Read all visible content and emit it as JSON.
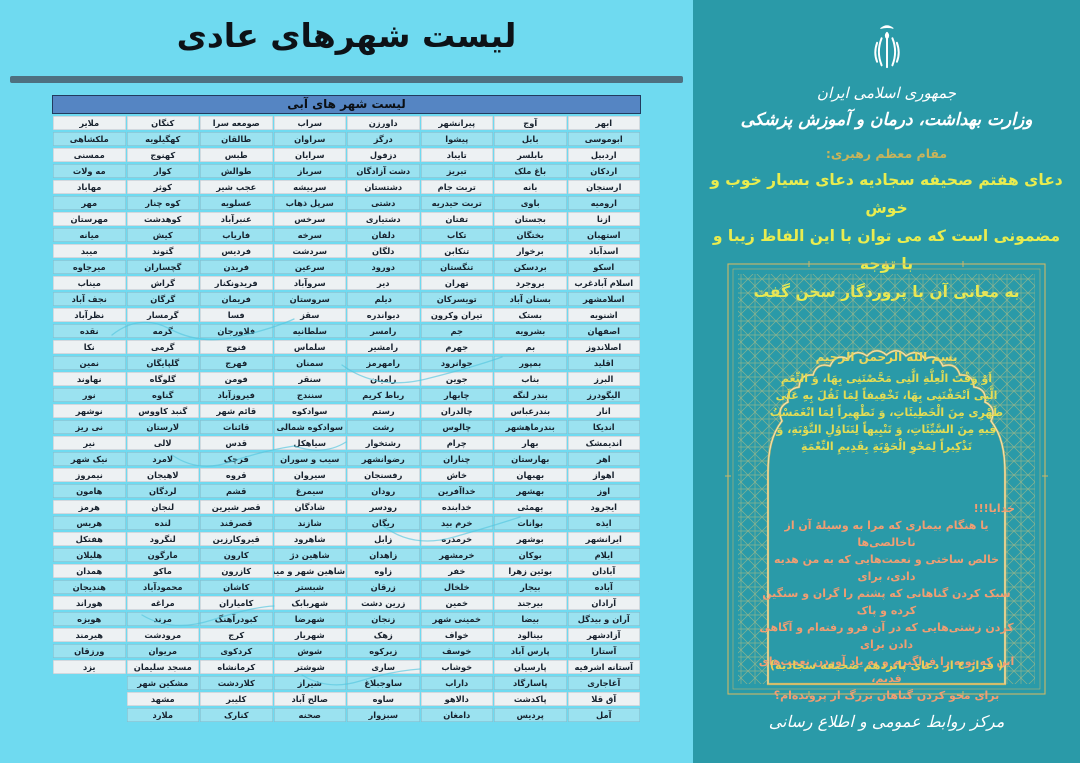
{
  "colors": {
    "left_background": "#6fdaf0",
    "row_light": "#edf1f3",
    "row_cyan": "#9be2f0",
    "table_header_band": "#5585c3",
    "right_background": "#2a9aa8",
    "gold": "#cdb768",
    "yellow": "#e9ec4f",
    "orange": "#f09e73",
    "white": "#ffffff"
  },
  "left_panel": {
    "title": "لیست شهرهای عادی",
    "table_title": "لیست شهر های آبی",
    "columns": [
      [
        "ابهر",
        "ابوموسی",
        "اردبیل",
        "اردکان",
        "ارسنجان",
        "ارومیه",
        "ازنا",
        "استهبان",
        "اسدآباد",
        "اسکو",
        "اسلام آبادغرب",
        "اسلامشهر",
        "اشنویه",
        "اصفهان",
        "اصلاندوز",
        "اقلید",
        "البرز",
        "الیگودرز",
        "انار",
        "اندیکا",
        "اندیمشک",
        "اهر",
        "اهواز",
        "اوز",
        "ایجرود",
        "ایذه",
        "ایرانشهر",
        "ایلام",
        "آبادان",
        "آباده",
        "آرادان",
        "آران و بیدگل",
        "آزادشهر",
        "آستارا",
        "آستانه اشرفیه",
        "آغاجاری",
        "آق قلا",
        "آمل"
      ],
      [
        "آوج",
        "بابل",
        "بابلسر",
        "باغ ملک",
        "بانه",
        "باوی",
        "بجستان",
        "بختگان",
        "برخوار",
        "بردسکن",
        "بروجرد",
        "بستان آباد",
        "بستک",
        "بشرویه",
        "بم",
        "بمپور",
        "بناب",
        "بندر لنگه",
        "بندرعباس",
        "بندرماهشهر",
        "بهار",
        "بهارستان",
        "بهبهان",
        "بهشهر",
        "بهمئی",
        "بوانات",
        "بوشهر",
        "بوکان",
        "بوئین زهرا",
        "بیجار",
        "بیرجند",
        "بیضا",
        "بینالود",
        "پارس آباد",
        "پارسیان",
        "پاسارگاد",
        "پاکدشت",
        "پردیس"
      ],
      [
        "پیرانشهر",
        "پیشوا",
        "تایباد",
        "تبریز",
        "تربت جام",
        "تربت حیدریه",
        "تفتان",
        "تکاب",
        "تنکابن",
        "تنگستان",
        "تهران",
        "تویسرکان",
        "تیران وکرون",
        "جم",
        "جهرم",
        "جوانرود",
        "جوین",
        "چابهار",
        "چالدران",
        "چالوس",
        "چرام",
        "چناران",
        "خاش",
        "خداآفرین",
        "خدابنده",
        "خرم بید",
        "خرمدره",
        "خرمشهر",
        "خفر",
        "خلخال",
        "خمین",
        "خمینی شهر",
        "خواف",
        "خوسف",
        "خوشاب",
        "داراب",
        "دالاهو",
        "دامغان"
      ],
      [
        "داورزن",
        "درگز",
        "دزفول",
        "دشت آزادگان",
        "دشتستان",
        "دشتی",
        "دشتیاری",
        "دلفان",
        "دلگان",
        "دورود",
        "دیر",
        "دیلم",
        "دیواندره",
        "رامسر",
        "رامشیر",
        "رامهرمز",
        "رامیان",
        "رباط کریم",
        "رستم",
        "رشت",
        "رشتخوار",
        "رضوانشهر",
        "رفسنجان",
        "رودان",
        "رودسر",
        "ریگان",
        "زابل",
        "زاهدان",
        "زاوه",
        "زرقان",
        "زرین دشت",
        "زنجان",
        "زهک",
        "زیرکوه",
        "ساری",
        "ساوجبلاغ",
        "ساوه",
        "سبزوار"
      ],
      [
        "سراب",
        "سراوان",
        "سرایان",
        "سرباز",
        "سربیشه",
        "سرپل ذهاب",
        "سرخس",
        "سرخه",
        "سردشت",
        "سرعین",
        "سروآباد",
        "سروستان",
        "سقز",
        "سلطانیه",
        "سلماس",
        "سمنان",
        "سنقر",
        "سنندج",
        "سوادکوه",
        "سوادکوه شمالی",
        "سیاهکل",
        "سیب و سوران",
        "سیروان",
        "سیمرغ",
        "شادگان",
        "شازند",
        "شاهرود",
        "شاهین دژ",
        "شاهین شهر و میمه",
        "شبستر",
        "شهربابک",
        "شهرضا",
        "شهریار",
        "شوش",
        "شوشتر",
        "شیراز",
        "صالح آباد",
        "صحنه"
      ],
      [
        "صومعه سرا",
        "طالقان",
        "طبس",
        "طوالش",
        "عجب شیر",
        "عسلویه",
        "عنبرآباد",
        "فاریاب",
        "فردیس",
        "فریدن",
        "فریدونکنار",
        "فریمان",
        "فسا",
        "فلاورجان",
        "فنوج",
        "فهرج",
        "فومن",
        "فیروزآباد",
        "قائم شهر",
        "قائنات",
        "قدس",
        "قرچک",
        "قروه",
        "قشم",
        "قصر شیرین",
        "قصرقند",
        "قیروکارزین",
        "کارون",
        "کازرون",
        "کاشان",
        "کامیاران",
        "کبودرآهنگ",
        "کرج",
        "کردکوی",
        "کرمانشاه",
        "کلاردشت",
        "کلیبر",
        "کنارک"
      ],
      [
        "کنگان",
        "کهگیلویه",
        "کهنوج",
        "کوار",
        "کوثر",
        "کوه چنار",
        "کوهدشت",
        "کیش",
        "گتوند",
        "گچساران",
        "گراش",
        "گرگان",
        "گرمسار",
        "گرمه",
        "گرمی",
        "گلپایگان",
        "گلوگاه",
        "گناوه",
        "گنبد کاووس",
        "لارستان",
        "لالی",
        "لامرد",
        "لاهیجان",
        "لردگان",
        "لنجان",
        "لنده",
        "لنگرود",
        "مارگون",
        "ماکو",
        "محمودآباد",
        "مراغه",
        "مرند",
        "مرودشت",
        "مریوان",
        "مسجد سلیمان",
        "مشکین شهر",
        "مشهد",
        "ملارد"
      ],
      [
        "ملایر",
        "ملکشاهی",
        "ممسنی",
        "مه ولات",
        "مهاباد",
        "مهر",
        "مهرستان",
        "میانه",
        "میبد",
        "میرجاوه",
        "میناب",
        "نجف آباد",
        "نظرآباد",
        "نقده",
        "نکا",
        "نمین",
        "نهاوند",
        "نور",
        "نوشهر",
        "نی ریز",
        "نیر",
        "نیک شهر",
        "نیمروز",
        "هامون",
        "هرمز",
        "هریس",
        "هفتکل",
        "هلیلان",
        "همدان",
        "هندیجان",
        "هوراند",
        "هویزه",
        "هیرمند",
        "ورزقان",
        "یزد",
        "",
        "",
        ""
      ]
    ]
  },
  "right_panel": {
    "gov_line1": "جمهوری اسلامی ایران",
    "gov_line2": "وزارت بهداشت، درمان و آموزش پزشکی",
    "leader_label": "مقام معظم رهبری:",
    "quote_lines": [
      "دعای هفتم صحیفه سجادیه دعای بسیار خوب و خوش",
      "مضمونی است که می توان با این الفاظ زیبا و با توجه",
      "به معانی آن با پروردگار سخن گفت"
    ],
    "bismillah": "بسم الله الرحمن الرحیم",
    "arabic_lines": [
      "اَوْ وَقْتَ الْعِلَّةِ الَّتِی مَحَّصْتَنِی بِهَا، وَ النِّعَمِ",
      "الَّتِی اَتْحَفْتَنِی بِهَا، تَخْفِیفاً لِمَا ثَقُلَ بِهِ عَلَی",
      "ظَهْرِی مِنَ الْخَطِیئَاتِ، وَ تَطْهِیراً لِمَا انْغَمَسْتُ",
      "فِیهِ مِنَ السَّیِّئَاتِ، وَ تَنْبِیهاً لِتَنَاوُلِ التَّوْبَةِ، وَ",
      "تَذْکِیراً لِمَحْوِ الْحَوْبَةِ بِقَدِیمِ النِّعْمَةِ"
    ],
    "persian_lines": [
      "خدایا!!!",
      "یا هنگام بیماری که مرا به وسیلۀ آن از ناخالصی‌ها",
      "خالص ساختی و نعمت‌هایی که به من هدیه دادی، برای",
      "سبک کردن گناهانی که پشتم را گران و سنگین کرده و پاک",
      "کردن زشتی‌هایی که در آن فرو رفته‌ام و آگاهی دادن برای",
      "این که توبه را فراگیرم و به یاد آوردن نعمت‌های قدیم،",
      "برای محو کردن گناهان بزرگ از پرونده‌ام؟"
    ],
    "source_line": "( فراز ٤ از دعای پانزدهم صحیفه سجادیه)",
    "footer": "مرکز روابط عمومی و اطلاع رسانی"
  }
}
